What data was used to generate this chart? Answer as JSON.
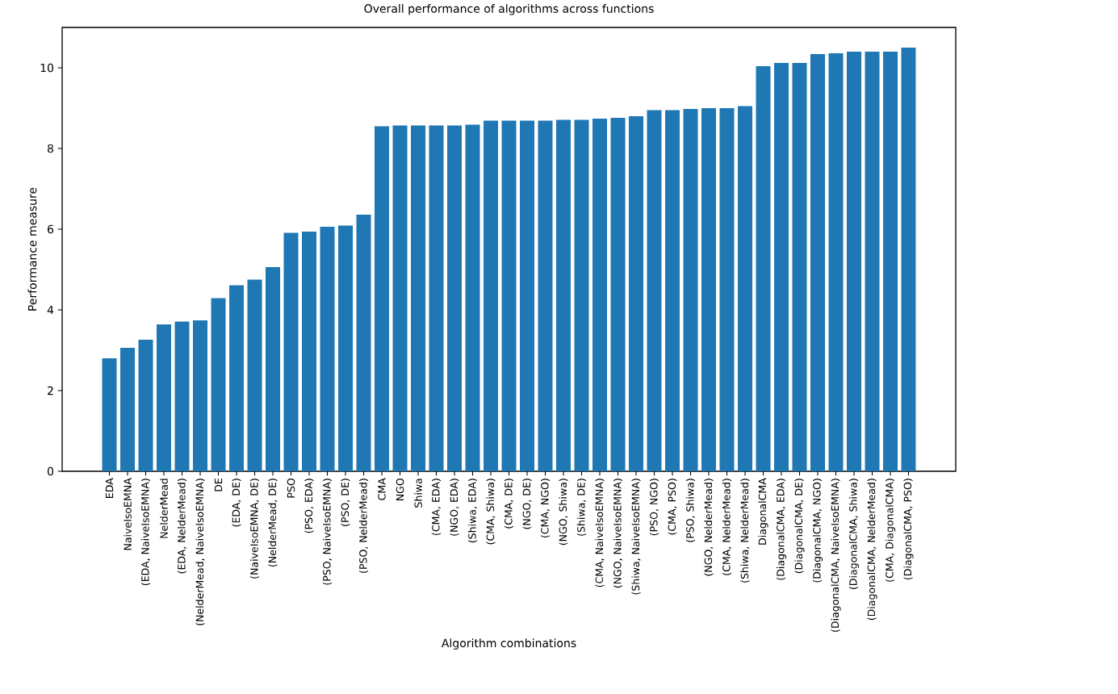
{
  "chart_data": {
    "type": "bar",
    "title": "Overall performance of algorithms across functions",
    "xlabel": "Algorithm combinations",
    "ylabel": "Performance measure",
    "categories": [
      "EDA",
      "NaiveIsoEMNA",
      "(EDA, NaiveIsoEMNA)",
      "NelderMead",
      "(EDA, NelderMead)",
      "(NelderMead, NaiveIsoEMNA)",
      "DE",
      "(EDA, DE)",
      "(NaiveIsoEMNA, DE)",
      "(NelderMead, DE)",
      "PSO",
      "(PSO, EDA)",
      "(PSO, NaiveIsoEMNA)",
      "(PSO, DE)",
      "(PSO, NelderMead)",
      "CMA",
      "NGO",
      "Shiwa",
      "(CMA, EDA)",
      "(NGO, EDA)",
      "(Shiwa, EDA)",
      "(CMA, Shiwa)",
      "(CMA, DE)",
      "(NGO, DE)",
      "(CMA, NGO)",
      "(NGO, Shiwa)",
      "(Shiwa, DE)",
      "(CMA, NaiveIsoEMNA)",
      "(NGO, NaiveIsoEMNA)",
      "(Shiwa, NaiveIsoEMNA)",
      "(PSO, NGO)",
      "(CMA, PSO)",
      "(PSO, Shiwa)",
      "(NGO, NelderMead)",
      "(CMA, NelderMead)",
      "(Shiwa, NelderMead)",
      "DiagonalCMA",
      "(DiagonalCMA, EDA)",
      "(DiagonalCMA, DE)",
      "(DiagonalCMA, NGO)",
      "(DiagonalCMA, NaiveIsoEMNA)",
      "(DiagonalCMA, Shiwa)",
      "(DiagonalCMA, NelderMead)",
      "(CMA, DiagonalCMA)",
      "(DiagonalCMA, PSO)"
    ],
    "values": [
      2.8,
      3.06,
      3.26,
      3.64,
      3.71,
      3.74,
      4.29,
      4.61,
      4.75,
      5.06,
      5.91,
      5.94,
      6.06,
      6.09,
      6.36,
      8.55,
      8.57,
      8.57,
      8.57,
      8.57,
      8.59,
      8.69,
      8.69,
      8.69,
      8.69,
      8.71,
      8.71,
      8.74,
      8.76,
      8.8,
      8.95,
      8.95,
      8.98,
      9.0,
      9.0,
      9.05,
      10.04,
      10.12,
      10.12,
      10.34,
      10.36,
      10.4,
      10.4,
      10.4,
      10.5
    ],
    "color": "#1f77b4",
    "ylim": [
      0,
      11
    ],
    "yticks": [
      0,
      2,
      4,
      6,
      8,
      10
    ]
  }
}
